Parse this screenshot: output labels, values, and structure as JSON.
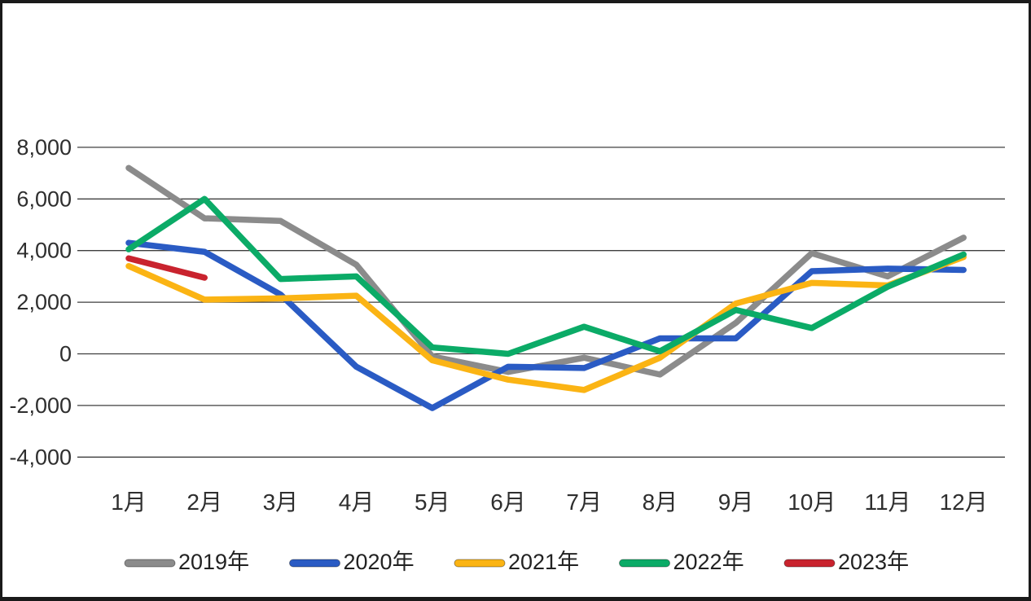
{
  "chart_data": {
    "type": "line",
    "title": "",
    "xlabel": "",
    "ylabel": "",
    "categories": [
      "1月",
      "2月",
      "3月",
      "4月",
      "5月",
      "6月",
      "7月",
      "8月",
      "9月",
      "10月",
      "11月",
      "12月"
    ],
    "series": [
      {
        "name": "2019年",
        "color": "#8b8b8b",
        "values": [
          7200,
          5250,
          5150,
          3450,
          -100,
          -700,
          -150,
          -800,
          1200,
          3900,
          3000,
          4500
        ]
      },
      {
        "name": "2020年",
        "color": "#2a5bc4",
        "values": [
          4300,
          3950,
          2300,
          -500,
          -2100,
          -500,
          -550,
          600,
          600,
          3200,
          3300,
          3250
        ]
      },
      {
        "name": "2021年",
        "color": "#fbb414",
        "values": [
          3400,
          2100,
          2150,
          2250,
          -250,
          -1000,
          -1400,
          -150,
          1950,
          2750,
          2650,
          3750
        ]
      },
      {
        "name": "2022年",
        "color": "#0bab67",
        "values": [
          4050,
          6000,
          2900,
          3000,
          250,
          0,
          1050,
          100,
          1700,
          1000,
          2600,
          3850
        ]
      },
      {
        "name": "2023年",
        "color": "#c9232e",
        "values": [
          3700,
          2950,
          null,
          null,
          null,
          null,
          null,
          null,
          null,
          null,
          null,
          null
        ]
      }
    ],
    "ylim": [
      -4000,
      8000
    ],
    "ytick_step": 2000,
    "yticks": [
      8000,
      6000,
      4000,
      2000,
      0,
      -2000,
      -4000
    ],
    "ytick_labels": [
      "8,000",
      "6,000",
      "4,000",
      "2,000",
      "0",
      "-2,000",
      "-4,000"
    ],
    "grid": true,
    "legend_position": "bottom",
    "colors": {
      "grid_line": "#3f3f3f",
      "axis_text": "#2e2e2e",
      "legend_text": "#222222",
      "background": "#ffffff",
      "frame_border": "#1a1a1a"
    }
  }
}
